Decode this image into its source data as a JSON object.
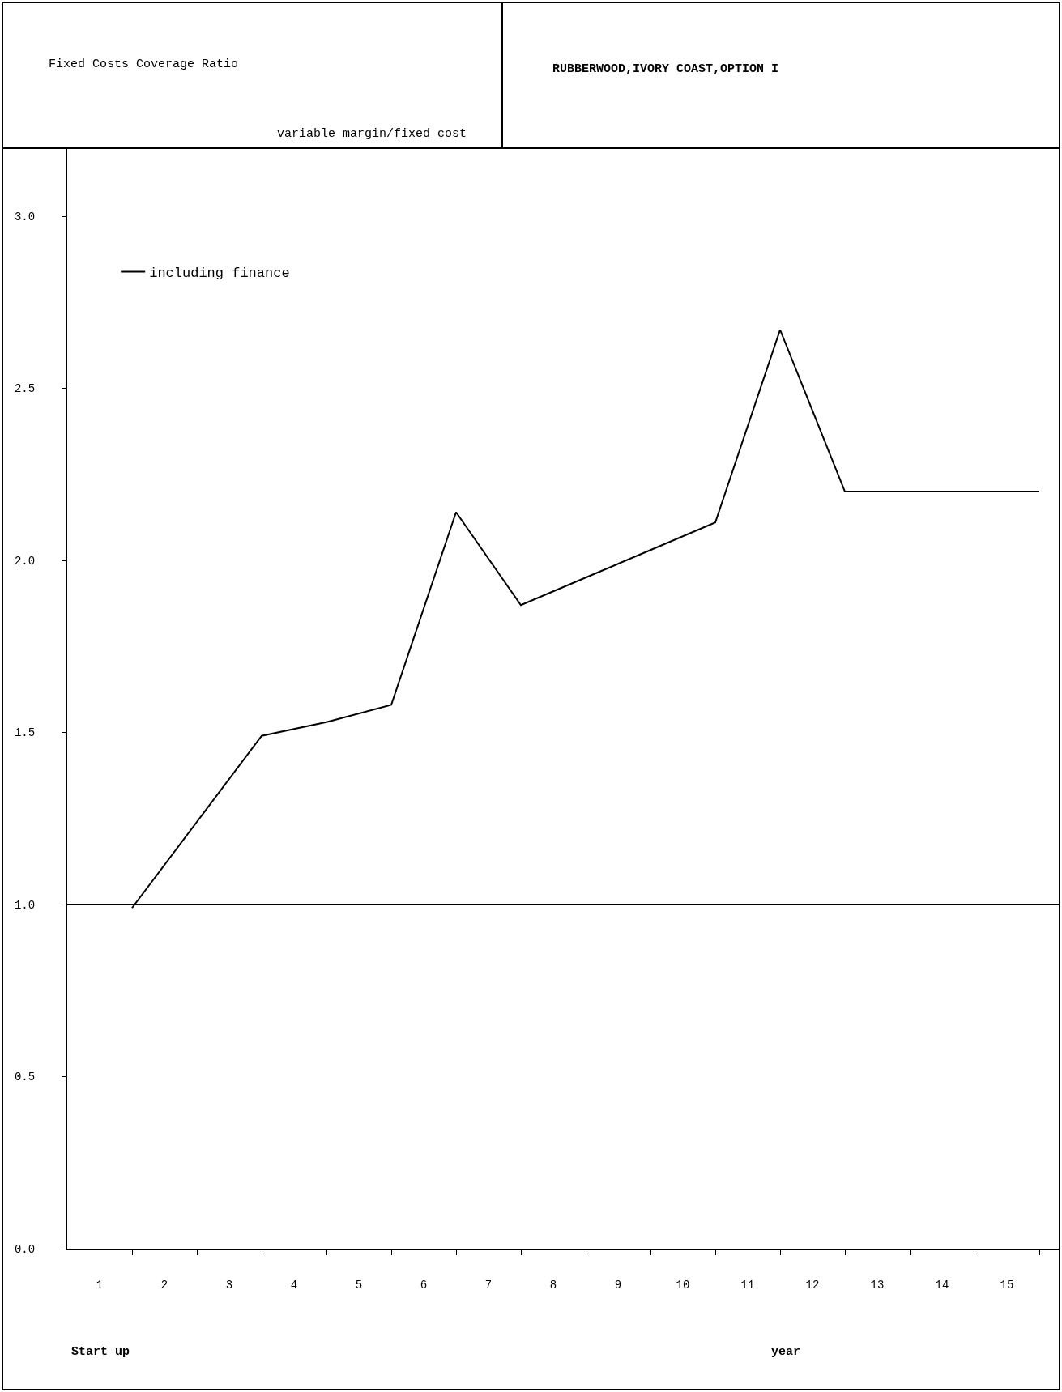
{
  "chart_data": {
    "type": "line",
    "title": "Fixed Costs Coverage Ratio",
    "subtitle": "variable margin/fixed cost",
    "annotations": [
      "RUBBERWOOD,IVORY COAST,OPTION I",
      "Start up",
      "year"
    ],
    "x": [
      1,
      2,
      3,
      4,
      5,
      6,
      7,
      8,
      9,
      10,
      11,
      12,
      13,
      14,
      15
    ],
    "series": [
      {
        "name": "including finance",
        "color": "#000000",
        "values": [
          0.99,
          1.24,
          1.49,
          1.53,
          1.58,
          2.14,
          1.87,
          1.95,
          2.03,
          2.11,
          2.67,
          2.2,
          2.2,
          2.2,
          2.2
        ]
      }
    ],
    "xlim": [
      0,
      15.3
    ],
    "xticks": [
      {
        "value": 0.5,
        "label": "1"
      },
      {
        "value": 1,
        "label": null
      },
      {
        "value": 1.5,
        "label": "2"
      },
      {
        "value": 2,
        "label": null
      },
      {
        "value": 2.5,
        "label": "3"
      },
      {
        "value": 3,
        "label": null
      },
      {
        "value": 3.5,
        "label": "4"
      },
      {
        "value": 4,
        "label": null
      },
      {
        "value": 4.5,
        "label": "5"
      },
      {
        "value": 5,
        "label": null
      },
      {
        "value": 5.5,
        "label": "6"
      },
      {
        "value": 6,
        "label": null
      },
      {
        "value": 6.5,
        "label": "7"
      },
      {
        "value": 7,
        "label": null
      },
      {
        "value": 7.5,
        "label": "8"
      },
      {
        "value": 8,
        "label": null
      },
      {
        "value": 8.5,
        "label": "9"
      },
      {
        "value": 9,
        "label": null
      },
      {
        "value": 9.5,
        "label": "10"
      },
      {
        "value": 10,
        "label": null
      },
      {
        "value": 10.5,
        "label": "11"
      },
      {
        "value": 11,
        "label": null
      },
      {
        "value": 11.5,
        "label": "12"
      },
      {
        "value": 12,
        "label": null
      },
      {
        "value": 12.5,
        "label": "13"
      },
      {
        "value": 13,
        "label": null
      },
      {
        "value": 13.5,
        "label": "14"
      },
      {
        "value": 14,
        "label": null
      },
      {
        "value": 14.5,
        "label": "15"
      },
      {
        "value": 15,
        "label": null
      }
    ],
    "ylim": [
      0,
      3.2
    ],
    "yticks": [
      {
        "value": 0,
        "label": "0.0"
      },
      {
        "value": 0.5,
        "label": "0.5"
      },
      {
        "value": 1,
        "label": "1.0"
      },
      {
        "value": 1.5,
        "label": "1.5"
      },
      {
        "value": 2,
        "label": "2.0"
      },
      {
        "value": 2.5,
        "label": "2.5"
      },
      {
        "value": 3,
        "label": "3.0"
      }
    ],
    "ref_lines": [
      {
        "axis": "y",
        "value": 1,
        "color": "#000000"
      }
    ],
    "grid": false,
    "legend": "top left",
    "marker": "none",
    "line_style": "solid"
  }
}
